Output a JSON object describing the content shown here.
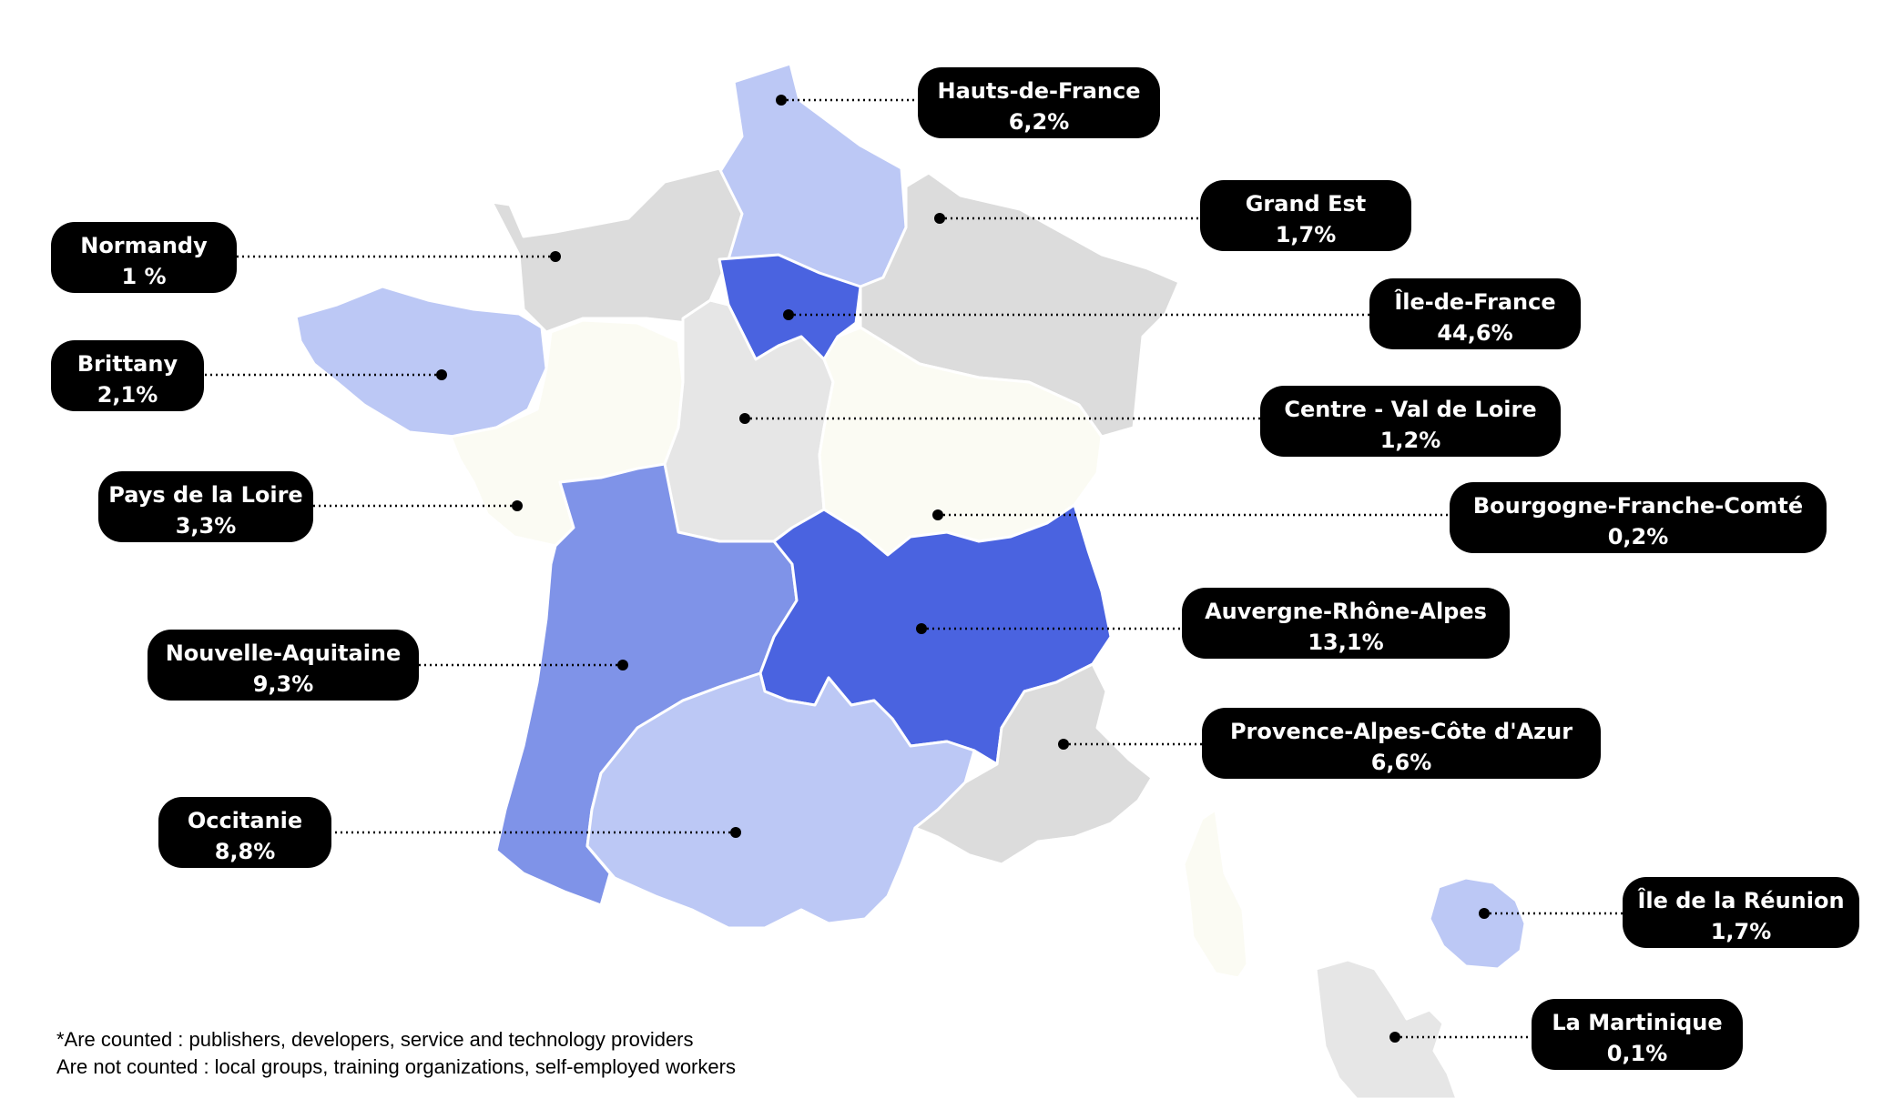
{
  "colors": {
    "very_high": "#4a63e0",
    "high": "#7f93e8",
    "medium": "#bcc8f5",
    "low_grey": "#dcdcdc",
    "light_grey": "#e6e6e6",
    "ivory": "#fbfbf3",
    "label_bg": "#000000",
    "label_text": "#ffffff"
  },
  "regions": [
    {
      "id": "hauts-de-france",
      "name": "Hauts-de-France",
      "value": "6,2%",
      "share": 6.2,
      "shade": "medium"
    },
    {
      "id": "grand-est",
      "name": "Grand Est",
      "value": "1,7%",
      "share": 1.7,
      "shade": "low_grey"
    },
    {
      "id": "normandy",
      "name": "Normandy",
      "value": "1 %",
      "share": 1.0,
      "shade": "low_grey"
    },
    {
      "id": "ile-de-france",
      "name": "Île-de-France",
      "value": "44,6%",
      "share": 44.6,
      "shade": "very_high"
    },
    {
      "id": "brittany",
      "name": "Brittany",
      "value": "2,1%",
      "share": 2.1,
      "shade": "medium"
    },
    {
      "id": "centre-val-de-loire",
      "name": "Centre - Val de Loire",
      "value": "1,2%",
      "share": 1.2,
      "shade": "light_grey"
    },
    {
      "id": "pays-de-la-loire",
      "name": "Pays de la Loire",
      "value": "3,3%",
      "share": 3.3,
      "shade": "ivory"
    },
    {
      "id": "bourgogne-franche-comte",
      "name": "Bourgogne-Franche-Comté",
      "value": "0,2%",
      "share": 0.2,
      "shade": "ivory"
    },
    {
      "id": "auvergne-rhone-alpes",
      "name": "Auvergne-Rhône-Alpes",
      "value": "13,1%",
      "share": 13.1,
      "shade": "very_high"
    },
    {
      "id": "nouvelle-aquitaine",
      "name": "Nouvelle-Aquitaine",
      "value": "9,3%",
      "share": 9.3,
      "shade": "high"
    },
    {
      "id": "provence-alpes-cote-dazur",
      "name": "Provence-Alpes-Côte d'Azur",
      "value": "6,6%",
      "share": 6.6,
      "shade": "low_grey"
    },
    {
      "id": "occitanie",
      "name": "Occitanie",
      "value": "8,8%",
      "share": 8.8,
      "shade": "medium"
    },
    {
      "id": "ile-de-la-reunion",
      "name": "Île de la Réunion",
      "value": "1,7%",
      "share": 1.7,
      "shade": "medium"
    },
    {
      "id": "la-martinique",
      "name": "La Martinique",
      "value": "0,1%",
      "share": 0.1,
      "shade": "light_grey"
    }
  ],
  "footnote": {
    "line1": "*Are counted : publishers, developers, service and technology providers",
    "line2": "Are not counted : local groups, training organizations, self-employed workers"
  }
}
